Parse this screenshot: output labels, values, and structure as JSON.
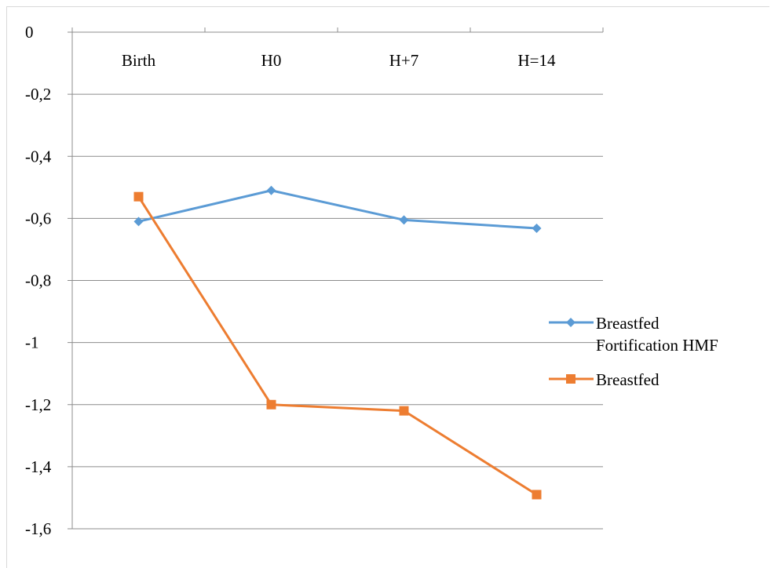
{
  "chart_data": {
    "type": "line",
    "categories": [
      "Birth",
      "H0",
      "H+7",
      "H=14"
    ],
    "ylim": [
      -1.6,
      0
    ],
    "yticks": [
      0,
      -0.2,
      -0.4,
      -0.6,
      -0.8,
      -1,
      -1.2,
      -1.4,
      -1.6
    ],
    "ytick_labels": [
      "0",
      "-0,2",
      "-0,4",
      "-0,6",
      "-0,8",
      "-1",
      "-1,2",
      "-1,4",
      "-1,6"
    ],
    "grid": true,
    "legend_position": "right",
    "series": [
      {
        "name": "Breastfed Fortification HMF",
        "name_lines": [
          "Breastfed",
          "Fortification HMF"
        ],
        "marker": "diamond",
        "color": "#5b9bd5",
        "values": [
          -0.61,
          -0.51,
          -0.605,
          -0.632
        ]
      },
      {
        "name": "Breastfed",
        "name_lines": [
          "Breastfed"
        ],
        "marker": "square",
        "color": "#ed7d31",
        "values": [
          -0.53,
          -1.2,
          -1.22,
          -1.49
        ]
      }
    ]
  }
}
